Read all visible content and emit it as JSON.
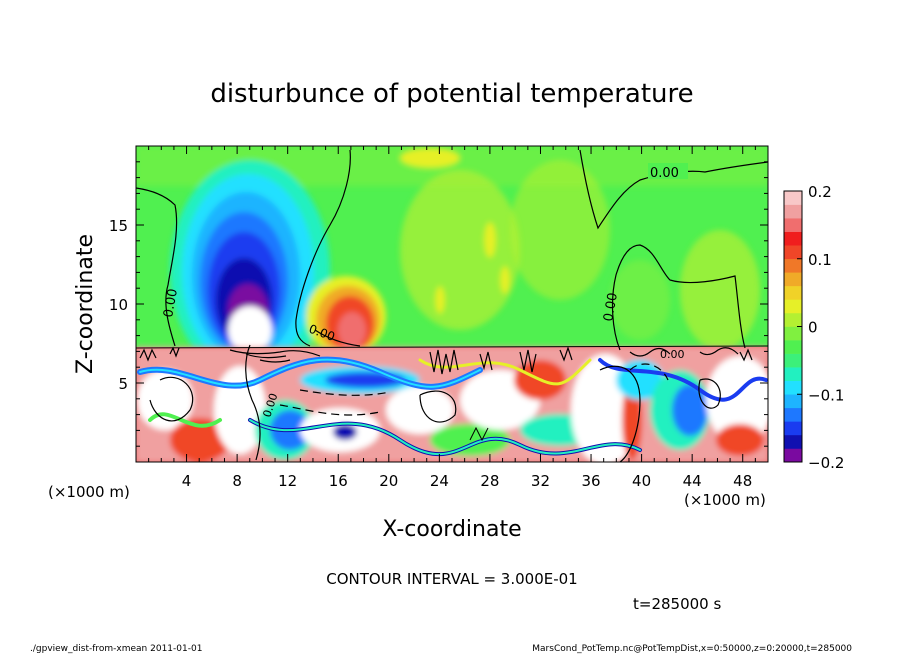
{
  "chart_data": {
    "type": "heatmap",
    "title": "disturbunce of potential temperature",
    "xlabel": "X-coordinate",
    "ylabel": "Z-coordinate",
    "x_unit_left": "(×1000 m)",
    "x_unit_right": "(×1000 m)",
    "xlim": [
      0,
      50
    ],
    "ylim": [
      0,
      20
    ],
    "xticks": [
      4,
      8,
      12,
      16,
      20,
      24,
      28,
      32,
      36,
      40,
      44,
      48
    ],
    "yticks": [
      5,
      10,
      15
    ],
    "colorbar": {
      "range": [
        -0.2,
        0.2
      ],
      "ticks": [
        {
          "value": 0.2,
          "label": "0.2"
        },
        {
          "value": 0.1,
          "label": "0.1"
        },
        {
          "value": 0,
          "label": "0"
        },
        {
          "value": -0.1,
          "label": "−0.1"
        },
        {
          "value": -0.2,
          "label": "−0.2"
        }
      ],
      "colors": [
        "#7a0aa0",
        "#1010b0",
        "#1a3cf0",
        "#1e78ff",
        "#1eb4ff",
        "#22e0ff",
        "#22f0c0",
        "#3cf07a",
        "#50f050",
        "#80f040",
        "#b4f032",
        "#e6f028",
        "#f0d228",
        "#f0aa28",
        "#f07828",
        "#f04628",
        "#f01e1e",
        "#f06e6e",
        "#f0a0a0",
        "#f8c8c8"
      ]
    },
    "contour_labels": [
      "0.00",
      "0.00",
      "0.00",
      "0.00",
      "0.00",
      "0.00"
    ],
    "contour_interval_text": "CONTOUR INTERVAL = 3.000E-01",
    "time_text": "t=285000 s"
  },
  "footer": {
    "left": "./gpview_dist-from-xmean   2011-01-01",
    "right": "MarsCond_PotTemp.nc@PotTempDist,x=0:50000,z=0:20000,t=285000"
  }
}
